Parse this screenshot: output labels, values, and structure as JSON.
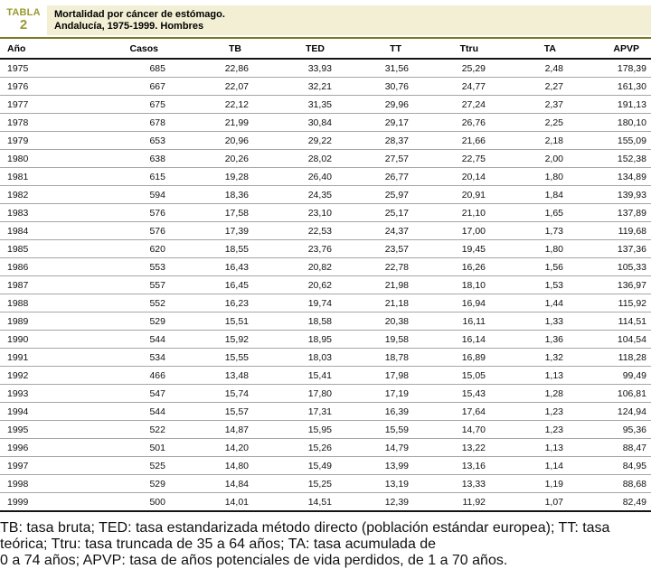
{
  "label": {
    "kind": "TABLA",
    "number": "2"
  },
  "title": {
    "line1": "Mortalidad por cáncer de estómago.",
    "line2": "Andalucía, 1975-1999. Hombres"
  },
  "chart_data": {
    "type": "table",
    "title": "Mortalidad por cáncer de estómago. Andalucía, 1975-1999. Hombres",
    "columns": [
      "Año",
      "Casos",
      "TB",
      "TED",
      "TT",
      "Ttru",
      "TA",
      "APVP"
    ],
    "rows": [
      [
        "1975",
        "685",
        "22,86",
        "33,93",
        "31,56",
        "25,29",
        "2,48",
        "178,39"
      ],
      [
        "1976",
        "667",
        "22,07",
        "32,21",
        "30,76",
        "24,77",
        "2,27",
        "161,30"
      ],
      [
        "1977",
        "675",
        "22,12",
        "31,35",
        "29,96",
        "27,24",
        "2,37",
        "191,13"
      ],
      [
        "1978",
        "678",
        "21,99",
        "30,84",
        "29,17",
        "26,76",
        "2,25",
        "180,10"
      ],
      [
        "1979",
        "653",
        "20,96",
        "29,22",
        "28,37",
        "21,66",
        "2,18",
        "155,09"
      ],
      [
        "1980",
        "638",
        "20,26",
        "28,02",
        "27,57",
        "22,75",
        "2,00",
        "152,38"
      ],
      [
        "1981",
        "615",
        "19,28",
        "26,40",
        "26,77",
        "20,14",
        "1,80",
        "134,89"
      ],
      [
        "1982",
        "594",
        "18,36",
        "24,35",
        "25,97",
        "20,91",
        "1,84",
        "139,93"
      ],
      [
        "1983",
        "576",
        "17,58",
        "23,10",
        "25,17",
        "21,10",
        "1,65",
        "137,89"
      ],
      [
        "1984",
        "576",
        "17,39",
        "22,53",
        "24,37",
        "17,00",
        "1,73",
        "119,68"
      ],
      [
        "1985",
        "620",
        "18,55",
        "23,76",
        "23,57",
        "19,45",
        "1,80",
        "137,36"
      ],
      [
        "1986",
        "553",
        "16,43",
        "20,82",
        "22,78",
        "16,26",
        "1,56",
        "105,33"
      ],
      [
        "1987",
        "557",
        "16,45",
        "20,62",
        "21,98",
        "18,10",
        "1,53",
        "136,97"
      ],
      [
        "1988",
        "552",
        "16,23",
        "19,74",
        "21,18",
        "16,94",
        "1,44",
        "115,92"
      ],
      [
        "1989",
        "529",
        "15,51",
        "18,58",
        "20,38",
        "16,11",
        "1,33",
        "114,51"
      ],
      [
        "1990",
        "544",
        "15,92",
        "18,95",
        "19,58",
        "16,14",
        "1,36",
        "104,54"
      ],
      [
        "1991",
        "534",
        "15,55",
        "18,03",
        "18,78",
        "16,89",
        "1,32",
        "118,28"
      ],
      [
        "1992",
        "466",
        "13,48",
        "15,41",
        "17,98",
        "15,05",
        "1,13",
        "99,49"
      ],
      [
        "1993",
        "547",
        "15,74",
        "17,80",
        "17,19",
        "15,43",
        "1,28",
        "106,81"
      ],
      [
        "1994",
        "544",
        "15,57",
        "17,31",
        "16,39",
        "17,64",
        "1,23",
        "124,94"
      ],
      [
        "1995",
        "522",
        "14,87",
        "15,95",
        "15,59",
        "14,70",
        "1,23",
        "95,36"
      ],
      [
        "1996",
        "501",
        "14,20",
        "15,26",
        "14,79",
        "13,22",
        "1,13",
        "88,47"
      ],
      [
        "1997",
        "525",
        "14,80",
        "15,49",
        "13,99",
        "13,16",
        "1,14",
        "84,95"
      ],
      [
        "1998",
        "529",
        "14,84",
        "15,25",
        "13,19",
        "13,33",
        "1,19",
        "88,68"
      ],
      [
        "1999",
        "500",
        "14,01",
        "14,51",
        "12,39",
        "11,92",
        "1,07",
        "82,49"
      ]
    ]
  },
  "footnote": {
    "line1": "TB: tasa bruta; TED: tasa estandarizada método directo (población estándar europea); TT: tasa teórica; Ttru: tasa truncada de 35 a 64 años; TA: tasa acumulada de",
    "line2": "0 a 74 años; APVP: tasa de años potenciales de vida perdidos, de 1 a 70 años."
  },
  "colors": {
    "accent_olive_text": "#9a9a32",
    "accent_olive_rule": "#7b7b24",
    "title_box_bg": "#f2efd4",
    "heavy_rule": "#141414",
    "row_separator": "#a6a6a6"
  }
}
